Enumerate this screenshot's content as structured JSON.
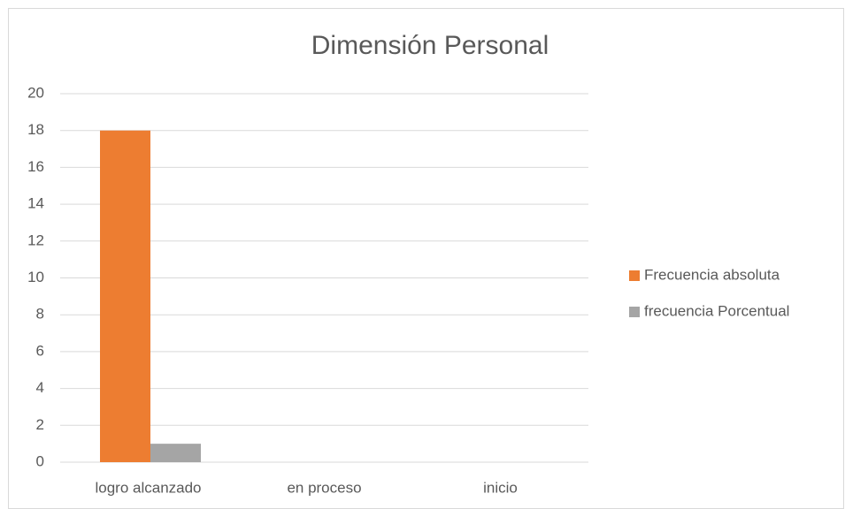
{
  "chart_data": {
    "type": "bar",
    "title": "Dimensión Personal",
    "categories": [
      "logro alcanzado",
      "en proceso",
      "inicio"
    ],
    "series": [
      {
        "name": "Frecuencia absoluta",
        "color": "#ed7d31",
        "values": [
          18,
          0,
          0
        ]
      },
      {
        "name": "frecuencia Porcentual",
        "color": "#a5a5a5",
        "values": [
          1,
          0,
          0
        ]
      }
    ],
    "ylim": [
      0,
      20
    ],
    "yticks": [
      0,
      2,
      4,
      6,
      8,
      10,
      12,
      14,
      16,
      18,
      20
    ],
    "grid": true,
    "legend": "right"
  }
}
